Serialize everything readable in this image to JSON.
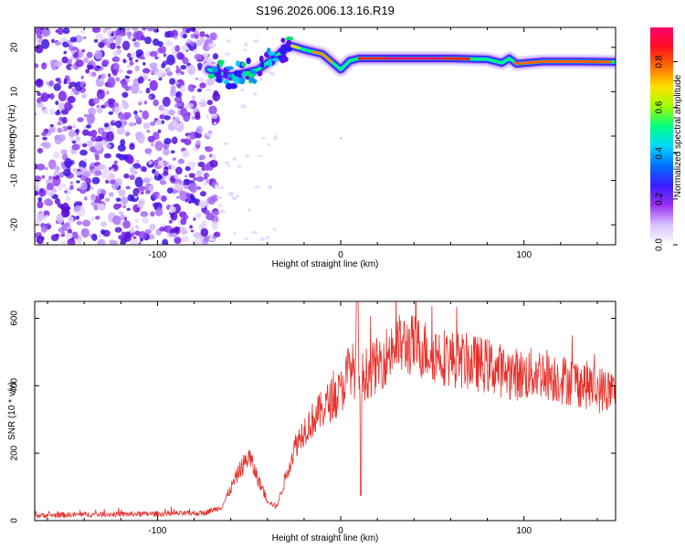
{
  "title": "S196.2026.006.13.16.R19",
  "chart_data": [
    {
      "type": "heatmap",
      "xlabel": "Height of straight line (km)",
      "ylabel": "Frequency (Hz)",
      "xlim": [
        -167,
        150
      ],
      "ylim": [
        -24.5,
        24.5
      ],
      "xticks": [
        -100,
        0,
        100
      ],
      "yticks": [
        20,
        10,
        0,
        -10,
        -20
      ],
      "colorbar": {
        "label": "Normalized spectral amplitude",
        "range": [
          0.0,
          0.95
        ],
        "ticks": [
          0.0,
          0.2,
          0.4,
          0.6,
          0.8
        ],
        "colors": [
          "#ffffff",
          "#d9c2ff",
          "#8a2be2",
          "#2020ff",
          "#00d8ff",
          "#00ff60",
          "#c8ff00",
          "#ffd000",
          "#ff3010",
          "#ff0080"
        ]
      },
      "ridge": {
        "x": [
          -72,
          -60,
          -45,
          -35,
          -28,
          -20,
          -10,
          0,
          5,
          10,
          20,
          40,
          60,
          80,
          88,
          92,
          96,
          110,
          130,
          150
        ],
        "y": [
          15,
          13.5,
          15,
          18,
          20.5,
          19.5,
          18.5,
          15,
          17,
          17.5,
          17.5,
          17.5,
          17.5,
          17.3,
          16.5,
          17.5,
          16.3,
          16.8,
          16.8,
          16.7
        ]
      }
    },
    {
      "type": "line",
      "xlabel": "Height of straight line (km)",
      "ylabel": "SNR (10 * v/v)",
      "xlim": [
        -167,
        150
      ],
      "ylim": [
        0,
        650
      ],
      "xticks": [
        -100,
        0,
        100
      ],
      "yticks": [
        0,
        200,
        400,
        600
      ],
      "series": [
        {
          "name": "SNR",
          "color": "#e8302a",
          "x": [
            -167,
            -140,
            -100,
            -75,
            -65,
            -55,
            -50,
            -45,
            -40,
            -35,
            -30,
            -25,
            -20,
            -15,
            -10,
            -5,
            0,
            5,
            10,
            15,
            20,
            30,
            40,
            50,
            60,
            70,
            80,
            90,
            100,
            110,
            120,
            130,
            140,
            150
          ],
          "values": [
            15,
            18,
            20,
            22,
            40,
            150,
            190,
            120,
            60,
            40,
            130,
            220,
            270,
            300,
            330,
            360,
            380,
            460,
            420,
            440,
            460,
            520,
            520,
            500,
            480,
            470,
            460,
            440,
            430,
            440,
            420,
            410,
            390,
            380
          ]
        }
      ]
    }
  ]
}
